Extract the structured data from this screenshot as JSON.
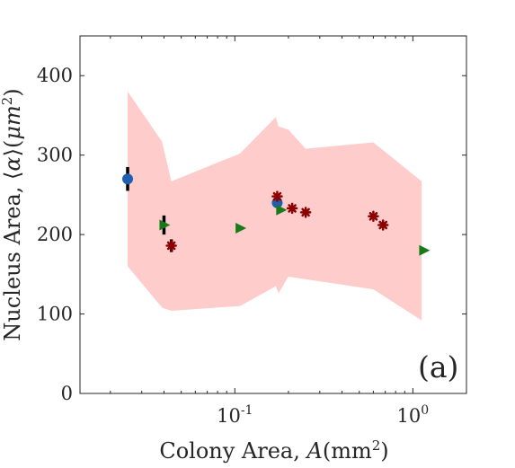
{
  "chart_data": {
    "type": "scatter",
    "title": "",
    "xlabel_parts": [
      "Colony Area, ",
      "A",
      "(mm",
      "2",
      ")"
    ],
    "ylabel_parts": [
      "Nucleus Area, ",
      "⟨",
      "α",
      "⟩",
      "(",
      "μm",
      "2",
      ")"
    ],
    "x_scale": "log",
    "xlim": [
      0.0135,
      2.0
    ],
    "ylim": [
      0,
      450
    ],
    "x_ticks": [
      {
        "value": 0.1,
        "base": "10",
        "exp": "-1"
      },
      {
        "value": 1,
        "base": "10",
        "exp": "0"
      }
    ],
    "y_ticks": [
      0,
      100,
      200,
      300,
      400
    ],
    "y_tick_labels": [
      "0",
      "100",
      "200",
      "300",
      "400"
    ],
    "panel_label": "(a)",
    "grid": false,
    "band": {
      "color": "#ffcccc",
      "upper": [
        [
          0.025,
          380
        ],
        [
          0.039,
          317
        ],
        [
          0.044,
          267
        ],
        [
          0.107,
          302
        ],
        [
          0.17,
          348
        ],
        [
          0.176,
          336
        ],
        [
          0.2,
          332
        ],
        [
          0.25,
          308
        ],
        [
          0.6,
          316
        ],
        [
          1.12,
          267
        ]
      ],
      "lower": [
        [
          1.12,
          92
        ],
        [
          0.6,
          131
        ],
        [
          0.2,
          147
        ],
        [
          0.176,
          126
        ],
        [
          0.17,
          135
        ],
        [
          0.107,
          110
        ],
        [
          0.044,
          104
        ],
        [
          0.039,
          108
        ],
        [
          0.025,
          160
        ]
      ]
    },
    "series": [
      {
        "marker": "circle",
        "color": "#1f5fb0",
        "points": [
          [
            0.025,
            270
          ],
          [
            0.173,
            240
          ]
        ],
        "errors": [
          15,
          0
        ]
      },
      {
        "marker": "triangle-right",
        "color": "#1a7a1a",
        "points": [
          [
            0.04,
            212
          ],
          [
            0.107,
            208
          ],
          [
            0.181,
            231
          ],
          [
            1.15,
            180
          ]
        ],
        "errors": [
          12,
          0,
          0,
          0
        ]
      },
      {
        "marker": "asterisk",
        "color": "#8b0000",
        "points": [
          [
            0.044,
            186
          ],
          [
            0.173,
            248
          ],
          [
            0.21,
            233
          ],
          [
            0.25,
            228
          ],
          [
            0.6,
            223
          ],
          [
            0.68,
            212
          ]
        ],
        "errors": [
          8,
          0,
          0,
          0,
          0,
          0
        ]
      }
    ]
  }
}
